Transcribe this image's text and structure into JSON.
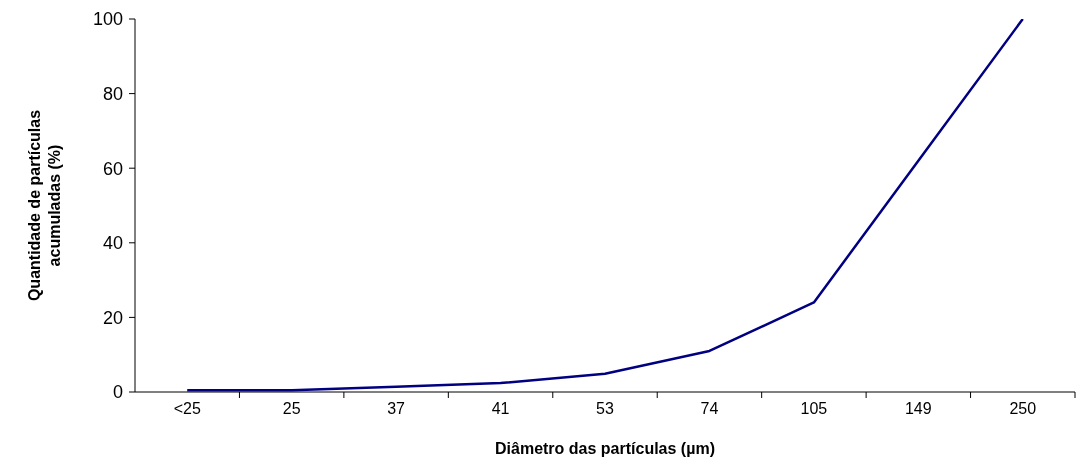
{
  "chart_data": {
    "type": "line",
    "xlabel": "Diâmetro das partículas (µm)",
    "ylabel": "Quantidade de partículas acumuladas (%)",
    "categories": [
      "<25",
      "25",
      "37",
      "41",
      "53",
      "74",
      "105",
      "149",
      "250"
    ],
    "series": [
      {
        "color": "#000080",
        "values": [
          0.5,
          0.5,
          1.4,
          2.4,
          4.9,
          11,
          24,
          62,
          100
        ]
      }
    ],
    "ylim": [
      0,
      100
    ],
    "yticks": [
      0,
      20,
      40,
      60,
      80,
      100
    ],
    "grid": false,
    "legend": false,
    "marker": "none",
    "line_style": "solid"
  }
}
